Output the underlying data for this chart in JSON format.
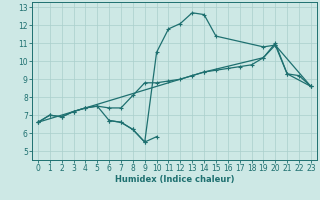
{
  "xlabel": "Humidex (Indice chaleur)",
  "xlim": [
    -0.5,
    23.5
  ],
  "ylim": [
    4.5,
    13.3
  ],
  "xticks": [
    0,
    1,
    2,
    3,
    4,
    5,
    6,
    7,
    8,
    9,
    10,
    11,
    12,
    13,
    14,
    15,
    16,
    17,
    18,
    19,
    20,
    21,
    22,
    23
  ],
  "yticks": [
    5,
    6,
    7,
    8,
    9,
    10,
    11,
    12,
    13
  ],
  "bg_color": "#cde8e5",
  "grid_color": "#aacfcc",
  "line_color": "#1e7070",
  "line1_x": [
    0,
    1,
    2,
    3,
    4,
    5,
    6,
    7,
    8,
    9,
    10,
    11,
    12,
    13,
    14,
    15,
    19,
    20,
    21,
    23
  ],
  "line1_y": [
    6.6,
    7.0,
    6.9,
    7.2,
    7.4,
    7.5,
    6.7,
    6.6,
    6.2,
    5.5,
    10.5,
    11.8,
    12.1,
    12.7,
    12.6,
    11.4,
    10.8,
    10.9,
    9.3,
    8.6
  ],
  "line2_x": [
    0,
    1,
    2,
    3,
    4,
    5,
    6,
    7,
    8,
    9,
    10,
    11,
    12,
    13,
    14,
    15,
    16,
    17,
    18,
    19,
    20,
    21,
    22,
    23
  ],
  "line2_y": [
    6.6,
    7.0,
    6.9,
    7.2,
    7.4,
    7.5,
    7.4,
    7.4,
    8.1,
    8.8,
    8.8,
    8.9,
    9.0,
    9.2,
    9.4,
    9.5,
    9.6,
    9.7,
    9.8,
    10.2,
    11.0,
    9.3,
    9.2,
    8.6
  ],
  "line3_x": [
    0,
    4,
    14,
    19,
    20,
    23
  ],
  "line3_y": [
    6.6,
    7.4,
    9.4,
    10.2,
    10.9,
    8.6
  ],
  "line4_x": [
    6,
    7,
    8,
    9,
    10
  ],
  "line4_y": [
    6.7,
    6.6,
    6.2,
    5.5,
    5.8
  ]
}
